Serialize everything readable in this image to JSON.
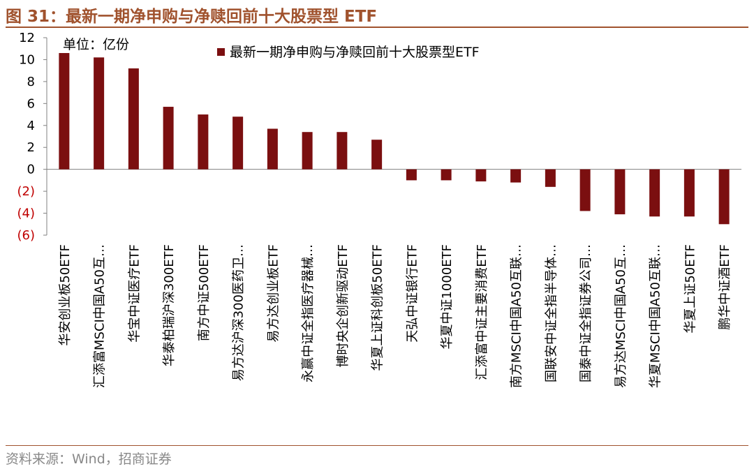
{
  "figure": {
    "title": "图 31：最新一期净申购与净赎回前十大股票型 ETF",
    "source": "资料来源：Wind，招商证券"
  },
  "colors": {
    "bar": "#7b0f10",
    "title": "#a0522d",
    "negative_tick": "#c00000"
  },
  "chart_data": {
    "type": "bar",
    "unit_label": "单位：亿份",
    "legend": "最新一期净申购与净赎回前十大股票型ETF",
    "legend_position": "top-center",
    "ylim": [
      -6,
      12
    ],
    "yticks": [
      {
        "value": 12,
        "label": "12"
      },
      {
        "value": 10,
        "label": "10"
      },
      {
        "value": 8,
        "label": "8"
      },
      {
        "value": 6,
        "label": "6"
      },
      {
        "value": 4,
        "label": "4"
      },
      {
        "value": 2,
        "label": "2"
      },
      {
        "value": 0,
        "label": "0"
      },
      {
        "value": -2,
        "label": "(2)"
      },
      {
        "value": -4,
        "label": "(4)"
      },
      {
        "value": -6,
        "label": "(6)"
      }
    ],
    "categories": [
      "华安创业板50ETF",
      "汇添富MSCI中国A50互…",
      "华宝中证医疗ETF",
      "华泰柏瑞沪深300ETF",
      "南方中证500ETF",
      "易方达沪深300医药卫…",
      "易方达创业板ETF",
      "永赢中证全指医疗器械…",
      "博时央企创新驱动ETF",
      "华夏上证科创板50ETF",
      "天弘中证银行ETF",
      "华夏中证1000ETF",
      "汇添富中证主要消费ETF",
      "南方MSCI中国A50互联…",
      "国联安中证全指半导体…",
      "国泰中证全指证券公司…",
      "易方达MSCI中国A50互…",
      "华夏MSCI中国A50互联…",
      "华夏上证50ETF",
      "鹏华中证酒ETF"
    ],
    "values": [
      10.6,
      10.2,
      9.2,
      5.7,
      5.0,
      4.8,
      3.7,
      3.4,
      3.4,
      2.7,
      -1.0,
      -1.0,
      -1.1,
      -1.2,
      -1.6,
      -3.8,
      -4.1,
      -4.3,
      -4.3,
      -5.0
    ]
  }
}
